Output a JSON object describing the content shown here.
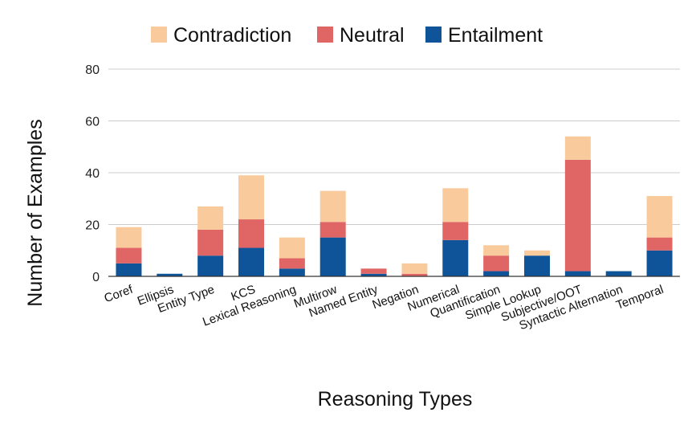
{
  "chart_data": {
    "type": "bar",
    "stacked": true,
    "title": "",
    "xlabel": "Reasoning Types",
    "ylabel": "Number of Examples",
    "ylim": [
      0,
      80
    ],
    "yticks": [
      "0",
      "20",
      "40",
      "60",
      "80"
    ],
    "grid": true,
    "legend_position": "top",
    "categories": [
      "Coref",
      "Ellipsis",
      "Entity Type",
      "KCS",
      "Lexical Reasoning",
      "Multirow",
      "Named Entity",
      "Negation",
      "Numerical",
      "Quantification",
      "Simple Lookup",
      "Subjective/OOT",
      "Syntactic Alternation",
      "Temporal"
    ],
    "series": [
      {
        "name": "Entailment",
        "color": "#0f5499",
        "values": [
          5,
          1,
          8,
          11,
          3,
          15,
          1,
          0,
          14,
          2,
          8,
          2,
          2,
          10
        ]
      },
      {
        "name": "Neutral",
        "color": "#e06666",
        "values": [
          6,
          0,
          10,
          11,
          4,
          6,
          2,
          1,
          7,
          6,
          0,
          43,
          0,
          5
        ]
      },
      {
        "name": "Contradiction",
        "color": "#f9cb9c",
        "values": [
          8,
          0,
          9,
          17,
          8,
          12,
          0,
          4,
          13,
          4,
          2,
          9,
          0,
          16
        ]
      }
    ],
    "legend_order": [
      "Contradiction",
      "Neutral",
      "Entailment"
    ]
  }
}
